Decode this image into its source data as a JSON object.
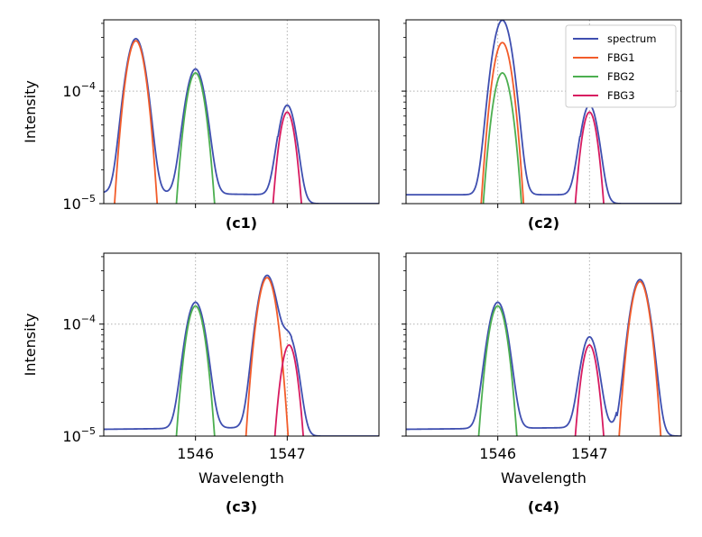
{
  "figure": {
    "legend": {
      "placement": "top-right",
      "panel": 1,
      "entries": [
        {
          "name": "spectrum",
          "color": "#3f4fb0"
        },
        {
          "name": "FBG1",
          "color": "#f25c2a"
        },
        {
          "name": "FBG2",
          "color": "#4caf50"
        },
        {
          "name": "FBG3",
          "color": "#d81b60"
        }
      ]
    }
  },
  "chart_data": [
    {
      "type": "line",
      "panel_label": "(c1)",
      "xlabel": "",
      "ylabel": "Intensity",
      "yscale": "log",
      "xlim": [
        1545.0,
        1548.0
      ],
      "ylim": [
        1e-05,
        0.00043
      ],
      "xticks": [
        1546,
        1547
      ],
      "xtick_labels": [
        "",
        ""
      ],
      "yticks": [
        1e-05,
        0.0001
      ],
      "ytick_labels": [
        {
          "base": "10",
          "exp": "−5"
        },
        {
          "base": "10",
          "exp": "−4"
        }
      ],
      "grid": "dotted",
      "baseline": {
        "left": 1.25e-05,
        "mid": 1.2e-05,
        "right": 1e-05,
        "join": 1546.9
      },
      "peaks": [
        {
          "series": "FBG1",
          "center": 1545.35,
          "amplitude": 0.00028,
          "sigma": 0.09
        },
        {
          "series": "FBG2",
          "center": 1546.0,
          "amplitude": 0.000145,
          "sigma": 0.09
        },
        {
          "series": "FBG3",
          "center": 1547.0,
          "amplitude": 6.5e-05,
          "sigma": 0.08
        }
      ]
    },
    {
      "type": "line",
      "panel_label": "(c2)",
      "xlabel": "",
      "ylabel": "",
      "yscale": "log",
      "xlim": [
        1545.0,
        1548.0
      ],
      "ylim": [
        1e-05,
        0.00043
      ],
      "xticks": [
        1546,
        1547
      ],
      "xtick_labels": [
        "",
        ""
      ],
      "yticks": [
        1e-05,
        0.0001
      ],
      "ytick_labels": [],
      "grid": "dotted",
      "baseline": {
        "left": 1.2e-05,
        "mid": 1.2e-05,
        "right": 1e-05,
        "join": 1546.9
      },
      "peaks": [
        {
          "series": "FBG1",
          "center": 1546.05,
          "amplitude": 0.00027,
          "sigma": 0.09
        },
        {
          "series": "FBG2",
          "center": 1546.05,
          "amplitude": 0.000145,
          "sigma": 0.09
        },
        {
          "series": "FBG3",
          "center": 1547.0,
          "amplitude": 6.5e-05,
          "sigma": 0.08
        }
      ]
    },
    {
      "type": "line",
      "panel_label": "(c3)",
      "xlabel": "Wavelength",
      "ylabel": "Intensity",
      "yscale": "log",
      "xlim": [
        1545.0,
        1548.0
      ],
      "ylim": [
        1e-05,
        0.00043
      ],
      "xticks": [
        1546,
        1547
      ],
      "xtick_labels": [
        "1546",
        "1547"
      ],
      "yticks": [
        1e-05,
        0.0001
      ],
      "ytick_labels": [
        {
          "base": "10",
          "exp": "−5"
        },
        {
          "base": "10",
          "exp": "−4"
        }
      ],
      "grid": "dotted",
      "baseline": {
        "left": 1.15e-05,
        "mid": 1.2e-05,
        "right": 1e-05,
        "join": 1547.05
      },
      "peaks": [
        {
          "series": "FBG2",
          "center": 1546.0,
          "amplitude": 0.000145,
          "sigma": 0.09
        },
        {
          "series": "FBG1",
          "center": 1546.78,
          "amplitude": 0.00026,
          "sigma": 0.09
        },
        {
          "series": "FBG3",
          "center": 1547.02,
          "amplitude": 6.5e-05,
          "sigma": 0.08
        }
      ]
    },
    {
      "type": "line",
      "panel_label": "(c4)",
      "xlabel": "Wavelength",
      "ylabel": "",
      "yscale": "log",
      "xlim": [
        1545.0,
        1548.0
      ],
      "ylim": [
        1e-05,
        0.00043
      ],
      "xticks": [
        1546,
        1547
      ],
      "xtick_labels": [
        "1546",
        "1547"
      ],
      "yticks": [
        1e-05,
        0.0001
      ],
      "ytick_labels": [],
      "grid": "dotted",
      "baseline": {
        "left": 1.15e-05,
        "mid": 1.2e-05,
        "right": 1e-05,
        "join": 1547.3
      },
      "peaks": [
        {
          "series": "FBG2",
          "center": 1546.0,
          "amplitude": 0.000145,
          "sigma": 0.09
        },
        {
          "series": "FBG3",
          "center": 1547.0,
          "amplitude": 6.5e-05,
          "sigma": 0.08
        },
        {
          "series": "FBG1",
          "center": 1547.55,
          "amplitude": 0.00024,
          "sigma": 0.09
        }
      ]
    }
  ]
}
